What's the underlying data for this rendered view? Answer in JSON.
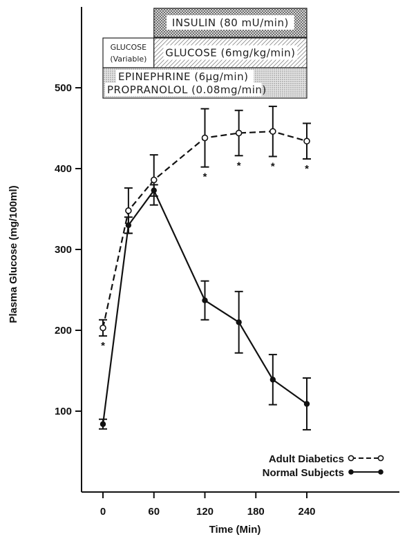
{
  "chart_data": {
    "type": "line",
    "title": "",
    "xlabel": "Time (Min)",
    "ylabel": "Plasma Glucose (mg/100ml)",
    "xlim": [
      -10,
      275
    ],
    "ylim": [
      0,
      600
    ],
    "x_ticks": [
      0,
      60,
      120,
      180,
      240
    ],
    "y_ticks": [
      100,
      200,
      300,
      400,
      500
    ],
    "grid": false,
    "legend_position": "bottom-right",
    "series": [
      {
        "name": "Adult Diabetics",
        "marker": "open-circle",
        "line_style": "dashed",
        "x": [
          0,
          30,
          60,
          120,
          160,
          200,
          240
        ],
        "y": [
          203,
          348,
          386,
          438,
          444,
          446,
          434
        ],
        "error": [
          10,
          28,
          31,
          36,
          28,
          31,
          22
        ],
        "significant": [
          true,
          false,
          false,
          true,
          true,
          true,
          true
        ]
      },
      {
        "name": "Normal Subjects",
        "marker": "filled-circle",
        "line_style": "solid",
        "x": [
          0,
          30,
          60,
          120,
          160,
          200,
          240
        ],
        "y": [
          84,
          330,
          373,
          237,
          210,
          139,
          109
        ],
        "error": [
          6,
          10,
          7,
          24,
          38,
          31,
          32
        ]
      }
    ],
    "significance_marker": "*",
    "protocol_bars": [
      {
        "id": "insulin",
        "label": "INSULIN (80 mU/min)",
        "start": 60,
        "end": 240,
        "pattern": "crosshatch"
      },
      {
        "id": "glucose-variable",
        "label_line1": "GLUCOSE",
        "label_line2": "(Variable)",
        "start": 0,
        "end": 60,
        "pattern": "none"
      },
      {
        "id": "glucose-fixed",
        "label": "GLUCOSE (6mg/kg/min)",
        "start": 60,
        "end": 240,
        "pattern": "diagonal"
      },
      {
        "id": "epi-prop",
        "label_line1": "EPINEPHRINE (6µg/min)",
        "label_line2": "PROPRANOLOL (0.08mg/min)",
        "start": 0,
        "end": 240,
        "pattern": "dots"
      }
    ]
  }
}
